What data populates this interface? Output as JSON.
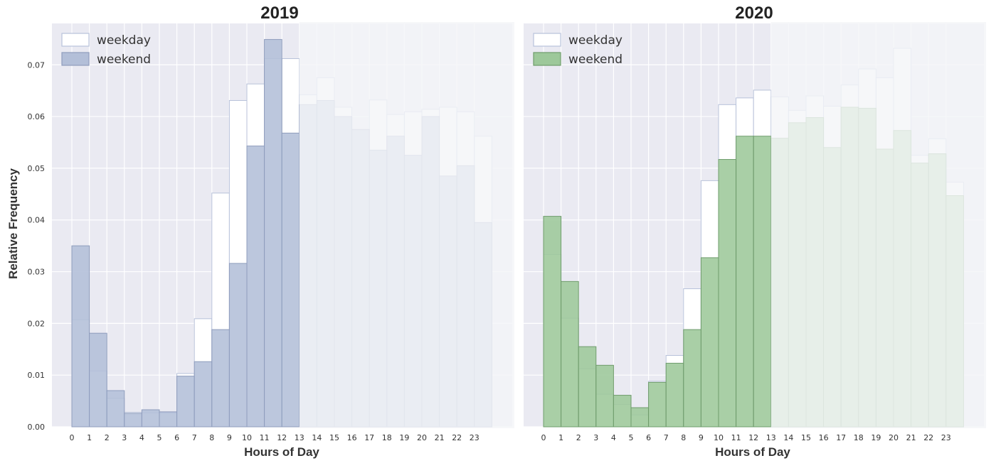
{
  "figure": {
    "ylabel": "Relative Frequency",
    "xlabel": "Hours of Day"
  },
  "chart_data": [
    {
      "type": "bar",
      "title": "2019",
      "xlabel": "Hours of Day",
      "ylabel": "Relative Frequency",
      "categories": [
        "0",
        "1",
        "2",
        "3",
        "4",
        "5",
        "6",
        "7",
        "8",
        "9",
        "10",
        "11",
        "12",
        "13",
        "14",
        "15",
        "16",
        "17",
        "18",
        "19",
        "20",
        "21",
        "22",
        "23"
      ],
      "ylim": [
        0,
        0.078
      ],
      "yticks": [
        "0.00",
        "0.01",
        "0.02",
        "0.03",
        "0.04",
        "0.05",
        "0.06",
        "0.07"
      ],
      "grid": true,
      "legend": "top-left",
      "series": [
        {
          "name": "weekday",
          "color": "#ffffff",
          "edge": "#b8c2da",
          "values": [
            0.0207,
            0.0108,
            0.0055,
            0.0028,
            0.0027,
            0.0027,
            0.0103,
            0.0209,
            0.0452,
            0.0631,
            0.0663,
            0.0712,
            0.0712,
            0.0642,
            0.0675,
            0.0618,
            0.0573,
            0.0632,
            0.0604,
            0.0609,
            0.0614,
            0.0618,
            0.0609,
            0.0562
          ]
        },
        {
          "name": "weekend",
          "color": "#b3bfd8",
          "edge": "#8f9dbd",
          "values": [
            0.035,
            0.0181,
            0.007,
            0.0026,
            0.0033,
            0.0029,
            0.0098,
            0.0126,
            0.0188,
            0.0316,
            0.0543,
            0.0749,
            0.0568,
            0.0623,
            0.0631,
            0.06,
            0.0575,
            0.0535,
            0.0562,
            0.0525,
            0.06,
            0.0485,
            0.0505,
            0.0395
          ]
        }
      ]
    },
    {
      "type": "bar",
      "title": "2020",
      "xlabel": "Hours of Day",
      "ylabel": "",
      "categories": [
        "0",
        "1",
        "2",
        "3",
        "4",
        "5",
        "6",
        "7",
        "8",
        "9",
        "10",
        "11",
        "12",
        "13",
        "14",
        "15",
        "16",
        "17",
        "18",
        "19",
        "20",
        "21",
        "22",
        "23"
      ],
      "ylim": [
        0,
        0.078
      ],
      "grid": true,
      "legend": "top-left",
      "series": [
        {
          "name": "weekday",
          "color": "#ffffff",
          "edge": "#b8c2da",
          "values": [
            0.0333,
            0.021,
            0.0112,
            0.0063,
            0.0043,
            0.0023,
            0.0088,
            0.0138,
            0.0267,
            0.0476,
            0.0623,
            0.0636,
            0.0651,
            0.0638,
            0.0612,
            0.064,
            0.062,
            0.0661,
            0.0692,
            0.0675,
            0.0732,
            0.0525,
            0.0557,
            0.0473
          ]
        },
        {
          "name": "weekend",
          "color": "#9dc89a",
          "edge": "#6f9c6c",
          "values": [
            0.0407,
            0.0281,
            0.0155,
            0.0119,
            0.0061,
            0.0037,
            0.0086,
            0.0123,
            0.0188,
            0.0327,
            0.0517,
            0.0562,
            0.0562,
            0.0558,
            0.0588,
            0.0598,
            0.054,
            0.0618,
            0.0616,
            0.0537,
            0.0573,
            0.051,
            0.0528,
            0.0447
          ]
        }
      ]
    }
  ]
}
